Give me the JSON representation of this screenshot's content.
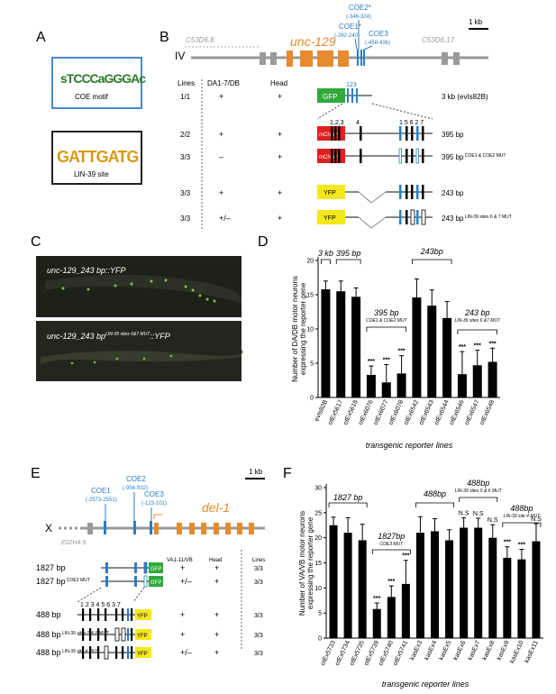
{
  "panel_labels": {
    "A": "A",
    "B": "B",
    "C": "C",
    "D": "D",
    "E": "E",
    "F": "F"
  },
  "panelA": {
    "coe_motif_label": "COE motif",
    "coe_motif_seq": "sTCCCaGGGAc",
    "lin39_label": "LIN-39 site",
    "lin39_seq": "GATTGATG"
  },
  "panelB": {
    "chrom": "IV",
    "gene": "unc-129",
    "left_gene": "C53D6.8",
    "right_gene": "C53D6.17",
    "coe2": "COE2*",
    "coe2_pos": "(-346-324)",
    "coe1": "COE1*",
    "coe1_pos": "(-262-240)",
    "coe3": "COE3",
    "coe3_pos": "(-458-436)",
    "scale": "1 kb",
    "hdr_lines": "Lines",
    "hdr_da": "DA1-7/DB",
    "hdr_head": "Head",
    "gfp": "GFP",
    "mcherry": "mCherry",
    "yfp": "YFP",
    "rows": [
      {
        "lines": "1/1",
        "da": "+",
        "head": "+",
        "label": "3 kb (evIs82B)",
        "sup": ""
      },
      {
        "lines": "2/2",
        "da": "+",
        "head": "+",
        "label": "395 bp",
        "sup": ""
      },
      {
        "lines": "3/3",
        "da": "–",
        "head": "+",
        "label": "395 bp",
        "sup": "COE1 & COE2 MUT"
      },
      {
        "lines": "3/3",
        "da": "+",
        "head": "+",
        "label": "243 bp",
        "sup": ""
      },
      {
        "lines": "3/3",
        "da": "+/–",
        "head": "+",
        "label": "243 bp",
        "sup": "LIN-39 sites 6 & 7 MUT"
      }
    ],
    "site_nums_top": "123",
    "site_nums_a": "1,2,3",
    "site_nums_b": "4",
    "site_nums_c": "1 5 6 2 7"
  },
  "panelC": {
    "top_label": "unc-129_243 bp::YFP",
    "bottom_label": "unc-129_243 bp",
    "bottom_sup": "LIN-39 sites 6&7 MUT",
    "bottom_suffix": "::YFP"
  },
  "panelE": {
    "chrom": "X",
    "gene": "del-1",
    "left_gene": "E02H4.9",
    "scale": "1 kb",
    "coe1": "COE1",
    "coe1_pos": "(-2573-2551)",
    "coe2": "COE2",
    "coe2_pos": "(-954-932)",
    "coe3": "COE3",
    "coe3_pos": "(-123-101)",
    "hdr_va": "VA1-11/VB",
    "hdr_head": "Head",
    "hdr_lines": "Lines",
    "gfp": "GFP",
    "yfp": "YFP",
    "rows": [
      {
        "label": "1827 bp",
        "sup": "",
        "va": "+",
        "head": "+",
        "lines": "3/3"
      },
      {
        "label": "1827 bp",
        "sup": "COE3 MUT",
        "va": "+/–",
        "head": "+",
        "lines": "3/3"
      },
      {
        "label": "488 bp",
        "sup": "",
        "va": "+",
        "head": "+",
        "lines": "3/3"
      },
      {
        "label": "488 bp",
        "sup": "LIN-39 sites 5 & 6 MUT",
        "va": "+",
        "head": "+",
        "lines": "3/3"
      },
      {
        "label": "488 bp",
        "sup": "LIN-39 site 4 MUT",
        "va": "+/–",
        "head": "+",
        "lines": "3/3"
      }
    ],
    "site_nums": "1 2 3 4 5 6 3 7"
  },
  "chart_data": [
    {
      "type": "bar",
      "panel": "D",
      "ylabel": "Number of DA/DB motor neurons expressing the reporter gene",
      "xlabel": "transgenic reporter lines",
      "ylim": [
        0,
        20
      ],
      "yticks": [
        0,
        5,
        10,
        15,
        20
      ],
      "categories": [
        "evIs82B",
        "otEx5617",
        "otEx5618",
        "otEx6076",
        "otEx6077",
        "otEx6078",
        "otEx6542",
        "otEx6543",
        "otEx6544",
        "otEx6546",
        "otEx6547",
        "otEx6548"
      ],
      "values": [
        15.8,
        15.5,
        14.7,
        3.3,
        2.2,
        3.5,
        14.6,
        13.4,
        11.6,
        3.4,
        4.7,
        5.2
      ],
      "errors": [
        1.2,
        1.5,
        1.3,
        1.3,
        2.6,
        2.6,
        2.7,
        2.3,
        2.4,
        3.3,
        2.2,
        2.0
      ],
      "stars": [
        "",
        "",
        "",
        "***",
        "***",
        "***",
        "",
        "",
        "",
        "***",
        "***",
        "***"
      ],
      "groups": [
        {
          "label": "3 kb",
          "sup": "",
          "from": 0,
          "to": 0
        },
        {
          "label": "395 bp",
          "sup": "",
          "from": 1,
          "to": 2
        },
        {
          "label": "395 bp",
          "sup": "COE1 & COE2 MUT",
          "from": 3,
          "to": 5
        },
        {
          "label": "243bp",
          "sup": "",
          "from": 6,
          "to": 8
        },
        {
          "label": "243 bp",
          "sup": "LIN-39 sites 6 &7 MUT",
          "from": 9,
          "to": 11
        }
      ]
    },
    {
      "type": "bar",
      "panel": "F",
      "ylabel": "Number of VA/VB motor neurons expressing the reporter gene",
      "xlabel": "transgenic reporter lines",
      "ylim": [
        0,
        30
      ],
      "yticks": [
        0,
        5,
        10,
        15,
        20,
        25,
        30
      ],
      "categories": [
        "otEx5733",
        "otEx5734",
        "otEx5735",
        "otEx5739",
        "otEx5740",
        "otEx5741",
        "kasEx3",
        "kasEx4",
        "kasEx5",
        "kasEx6",
        "kasEx7",
        "kasEx8",
        "kasEx9",
        "kasEx10",
        "kasEx11"
      ],
      "values": [
        22.5,
        21.0,
        19.5,
        5.8,
        8.2,
        10.8,
        21.0,
        21.3,
        19.5,
        22.0,
        22.0,
        20.0,
        16.0,
        15.7,
        19.3
      ],
      "errors": [
        1.6,
        3.0,
        3.2,
        1.2,
        2.2,
        4.7,
        3.2,
        2.5,
        2.1,
        2.0,
        1.9,
        2.6,
        2.2,
        2.0,
        3.5
      ],
      "stars": [
        "",
        "",
        "",
        "***",
        "***",
        "***",
        "",
        "",
        "",
        "N.S",
        "N.S",
        "N.S",
        "***",
        "***",
        "N.S"
      ],
      "groups": [
        {
          "label": "1827 bp",
          "sup": "",
          "from": 0,
          "to": 2
        },
        {
          "label": "1827bp",
          "sup": "COE3 MUT",
          "from": 3,
          "to": 5
        },
        {
          "label": "488bp",
          "sup": "",
          "from": 6,
          "to": 8
        },
        {
          "label": "488bp",
          "sup": "LIN-39 sites 5 & 6 MUT",
          "from": 9,
          "to": 11
        },
        {
          "label": "488bp",
          "sup": "LIN-39 site 4 MUT",
          "from": 12,
          "to": 14
        }
      ]
    }
  ]
}
